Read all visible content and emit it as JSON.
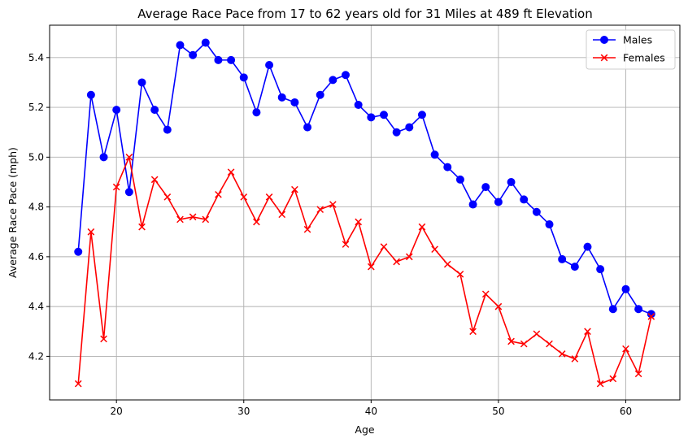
{
  "chart_data": {
    "type": "line",
    "title": "Average Race Pace from 17 to 62 years old for 31 Miles at 489 ft Elevation",
    "xlabel": "Age",
    "ylabel": "Average Race Pace (mph)",
    "xlim": [
      14.75,
      64.25
    ],
    "ylim": [
      4.025,
      5.53
    ],
    "xticks": [
      20,
      30,
      40,
      50,
      60
    ],
    "yticks": [
      4.2,
      4.4,
      4.6,
      4.8,
      5.0,
      5.2,
      5.4
    ],
    "grid": true,
    "legend_position": "top-right",
    "x": [
      17,
      18,
      19,
      20,
      21,
      22,
      23,
      24,
      25,
      26,
      27,
      28,
      29,
      30,
      31,
      32,
      33,
      34,
      35,
      36,
      37,
      38,
      39,
      40,
      41,
      42,
      43,
      44,
      45,
      46,
      47,
      48,
      49,
      50,
      51,
      52,
      53,
      54,
      55,
      56,
      57,
      58,
      59,
      60,
      61,
      62
    ],
    "series": [
      {
        "name": "Males",
        "color": "#0000ff",
        "marker": "circle",
        "values": [
          4.62,
          5.25,
          5.0,
          5.19,
          4.86,
          5.3,
          5.19,
          5.11,
          5.45,
          5.41,
          5.46,
          5.39,
          5.39,
          5.32,
          5.18,
          5.37,
          5.24,
          5.22,
          5.12,
          5.25,
          5.31,
          5.33,
          5.21,
          5.16,
          5.17,
          5.1,
          5.12,
          5.17,
          5.01,
          4.96,
          4.91,
          4.81,
          4.88,
          4.82,
          4.9,
          4.83,
          4.78,
          4.73,
          4.59,
          4.56,
          4.64,
          4.55,
          4.39,
          4.47,
          4.39,
          4.37
        ]
      },
      {
        "name": "Females",
        "color": "#ff0000",
        "marker": "x",
        "values": [
          4.09,
          4.7,
          4.27,
          4.88,
          5.0,
          4.72,
          4.91,
          4.84,
          4.75,
          4.76,
          4.75,
          4.85,
          4.94,
          4.84,
          4.74,
          4.84,
          4.77,
          4.87,
          4.71,
          4.79,
          4.81,
          4.65,
          4.74,
          4.56,
          4.64,
          4.58,
          4.6,
          4.72,
          4.63,
          4.57,
          4.53,
          4.3,
          4.45,
          4.4,
          4.26,
          4.25,
          4.29,
          4.25,
          4.21,
          4.19,
          4.3,
          4.09,
          4.11,
          4.23,
          4.13,
          4.36
        ]
      }
    ]
  }
}
